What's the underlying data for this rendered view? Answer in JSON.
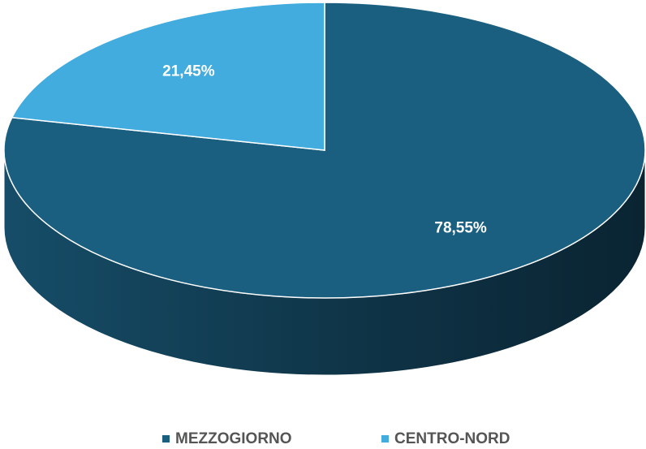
{
  "chart_data": {
    "type": "pie",
    "categories": [
      "MEZZOGIORNO",
      "CENTRO-NORD"
    ],
    "values": [
      78.55,
      21.45
    ],
    "value_labels": [
      "78,55%",
      "21,45%"
    ],
    "colors": [
      "#1a5f80",
      "#41acdd"
    ],
    "legend": "bottom"
  }
}
